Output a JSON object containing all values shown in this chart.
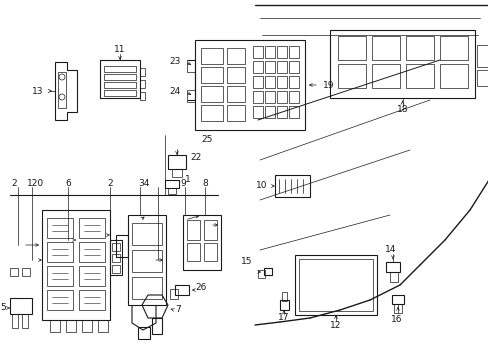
{
  "bg_color": "#ffffff",
  "fig_width": 4.89,
  "fig_height": 3.6,
  "dpi": 100,
  "lc": "#1a1a1a",
  "lw_main": 0.8,
  "lw_thin": 0.5,
  "fs_label": 6.5
}
